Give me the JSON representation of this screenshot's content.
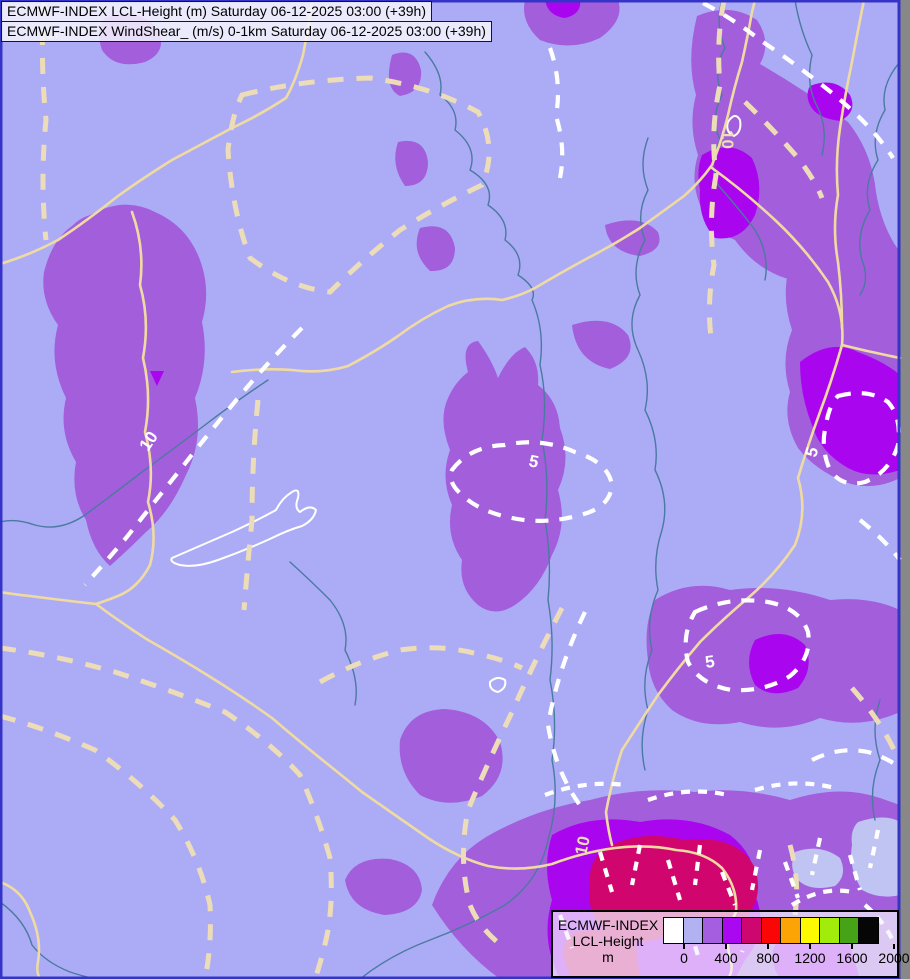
{
  "titles": [
    {
      "text": "ECMWF-INDEX LCL-Height (m) Saturday 06-12-2025 03:00 (+39h)"
    },
    {
      "text": "ECMWF-INDEX WindShear_ (m/s) 0-1km Saturday 06-12-2025 03:00 (+39h)"
    }
  ],
  "legend": {
    "title_lines": [
      "ECMWF-INDEX",
      "LCL-Height",
      "m"
    ],
    "tick_labels": [
      "0",
      "400",
      "800",
      "1200",
      "1600",
      "2000"
    ],
    "swatches": [
      "#ffffff",
      "#b2b2f2",
      "#a55ee0",
      "#aa08f0",
      "#ce0670",
      "#fb0606",
      "#fca405",
      "#fdf900",
      "#a2ec0c",
      "#46a317",
      "#060606"
    ]
  },
  "map": {
    "shaded_field": "LCL-Height (m)",
    "contour_field": "WindShear_ (m/s) 0-1km",
    "contour_labels": [
      {
        "text": "5",
        "color": "cream"
      },
      {
        "text": "10",
        "color": "white"
      },
      {
        "text": "5",
        "color": "white"
      },
      {
        "text": "10",
        "color": "cream"
      },
      {
        "text": "5",
        "color": "white"
      },
      {
        "text": "5",
        "color": "white"
      },
      {
        "text": "10",
        "color": "cream"
      }
    ]
  },
  "colors": {
    "background": "#acacf6",
    "light_patch": "#bfc4f2",
    "purple": "#a35edc",
    "violet": "#a906ef",
    "crimson": "#d0066e",
    "border_tan": "#efdaa2",
    "river": "#4a7aa0",
    "contour_white": "#ffffff",
    "contour_cream": "#ecdcb8",
    "frame": "#3434c6"
  }
}
